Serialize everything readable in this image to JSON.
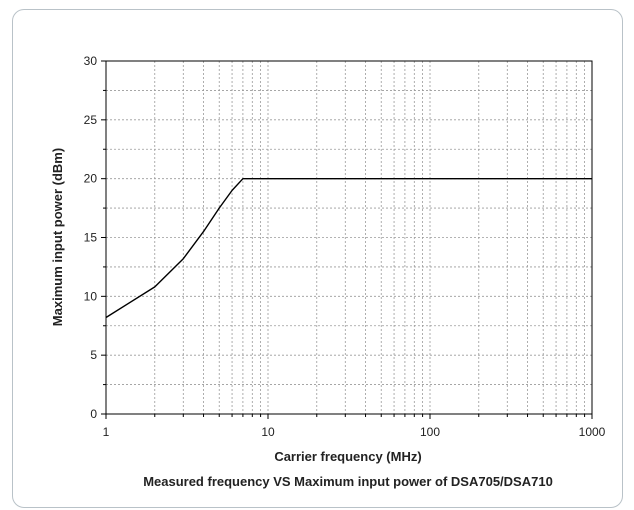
{
  "chart_data": {
    "type": "line",
    "title": "Measured frequency VS Maximum input power of DSA705/DSA710",
    "xlabel": "Carrier frequency (MHz)",
    "ylabel": "Maximum input power (dBm)",
    "xscale": "log",
    "xlim": [
      1,
      1000
    ],
    "ylim": [
      0,
      30
    ],
    "xticks": [
      "1",
      "10",
      "100",
      "1000"
    ],
    "yticks": [
      "0",
      "5",
      "10",
      "15",
      "20",
      "25",
      "30"
    ],
    "grid": true,
    "series": [
      {
        "x": [
          1,
          2,
          3,
          4,
          5,
          6,
          7,
          10,
          100,
          1000
        ],
        "y": [
          8.2,
          10.8,
          13.2,
          15.5,
          17.5,
          19.0,
          20,
          20,
          20,
          20
        ]
      }
    ]
  },
  "colors": {
    "line": "#000000",
    "grid": "#9a9a9a",
    "frame": "#b9c2c8"
  }
}
